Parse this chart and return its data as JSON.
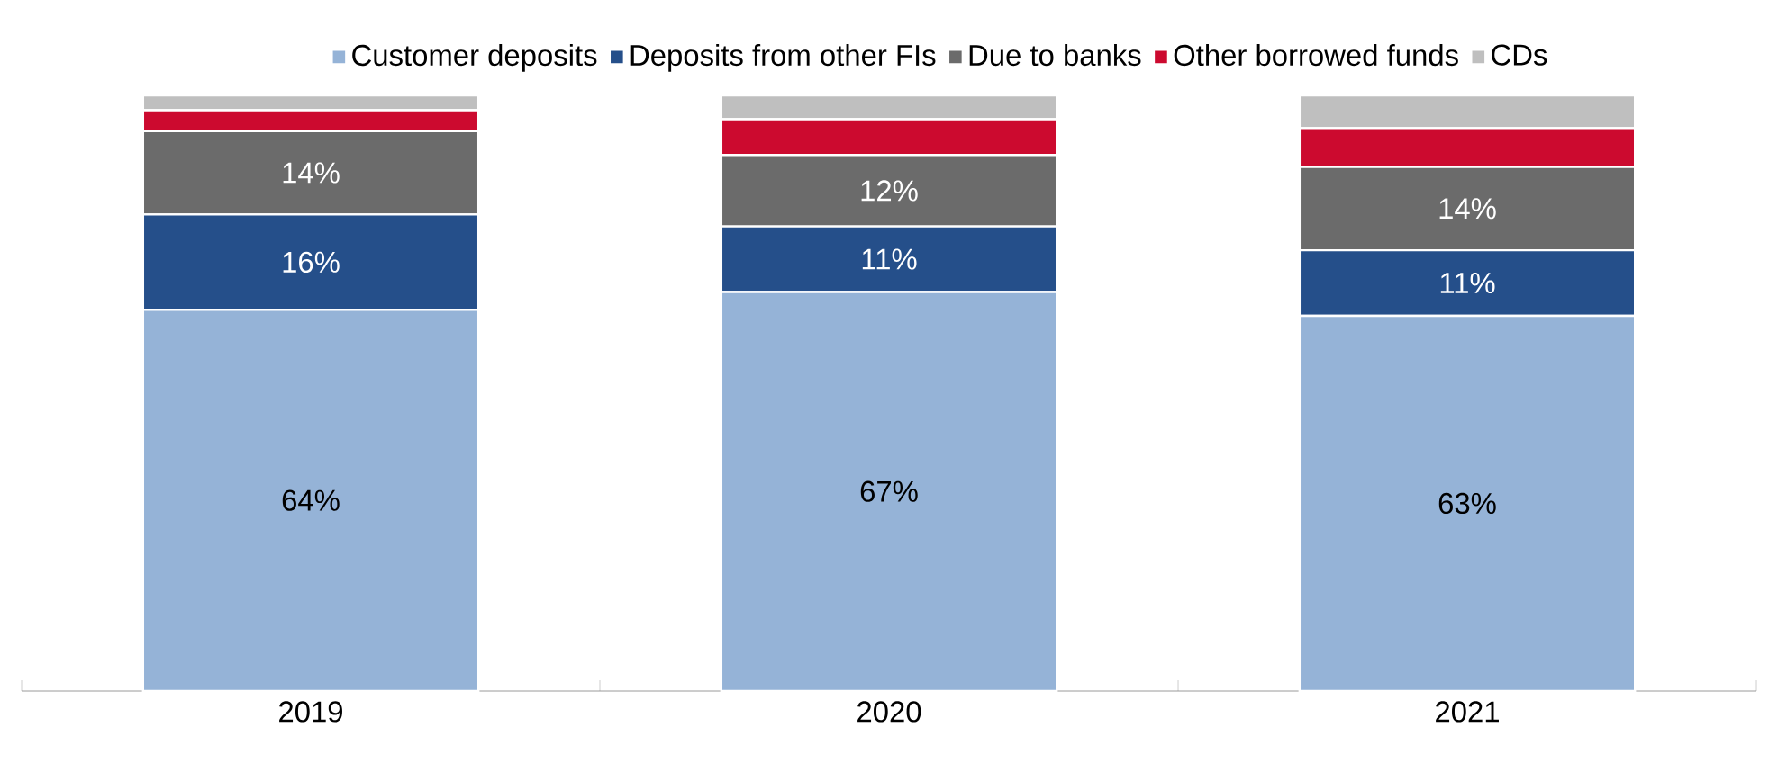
{
  "chart_data": {
    "type": "bar",
    "stacked": true,
    "categories": [
      "2019",
      "2020",
      "2021"
    ],
    "legend": "top",
    "tick_labels": "x",
    "series": [
      {
        "name": "Customer deposits",
        "color": "#95b3d7",
        "values": [
          64,
          67,
          63
        ],
        "value_labels": [
          "64%",
          "67%",
          "63%"
        ]
      },
      {
        "name": "Deposits from other FIs",
        "color": "#254f8a",
        "values": [
          16,
          11,
          11
        ],
        "value_labels": [
          "16%",
          "11%",
          "11%"
        ]
      },
      {
        "name": "Due to banks",
        "color": "#6b6b6b",
        "values": [
          14,
          12,
          14
        ],
        "value_labels": [
          "14%",
          "12%",
          "14%"
        ]
      },
      {
        "name": "Other borrowed funds",
        "color": "#cc0a2f",
        "values": [
          3.5,
          6,
          6.5
        ],
        "value_labels": [
          null,
          null,
          null
        ]
      },
      {
        "name": "CDs",
        "color": "#bfbfbf",
        "values": [
          2.5,
          4,
          5.5
        ],
        "value_labels": [
          null,
          null,
          null
        ]
      }
    ]
  }
}
